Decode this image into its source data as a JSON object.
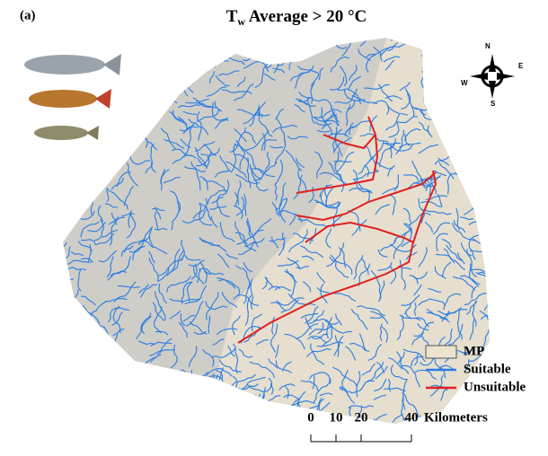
{
  "panel_label": "(a)",
  "title": {
    "main": "T",
    "subscript": "w",
    "rest": " Average > 20 °C"
  },
  "compass": {
    "north": "N",
    "east": "E",
    "south": "S",
    "west": "W"
  },
  "legend": {
    "items": [
      {
        "label": "MP",
        "color": "#ece3cf"
      },
      {
        "label": "Suitable",
        "color": "#2a7de1"
      },
      {
        "label": "Unsuitable",
        "color": "#e02020"
      }
    ]
  },
  "scale_bar": {
    "ticks": [
      0,
      10,
      20,
      40
    ],
    "unit": "Kilometers"
  }
}
